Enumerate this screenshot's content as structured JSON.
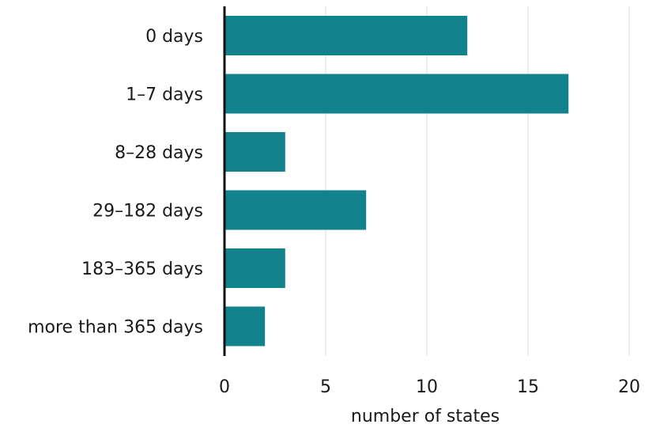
{
  "chart_data": {
    "type": "bar",
    "orientation": "horizontal",
    "categories": [
      "0 days",
      "1–7 days",
      "8–28 days",
      "29–182 days",
      "183–365 days",
      "more than 365 days"
    ],
    "values": [
      12,
      17,
      3,
      7,
      3,
      2
    ],
    "xlabel": "number of states",
    "ylabel": "",
    "xlim": [
      0,
      20
    ],
    "xticks": [
      "0",
      "5",
      "10",
      "15",
      "20"
    ],
    "grid": true,
    "bar_color": "#12838c"
  }
}
